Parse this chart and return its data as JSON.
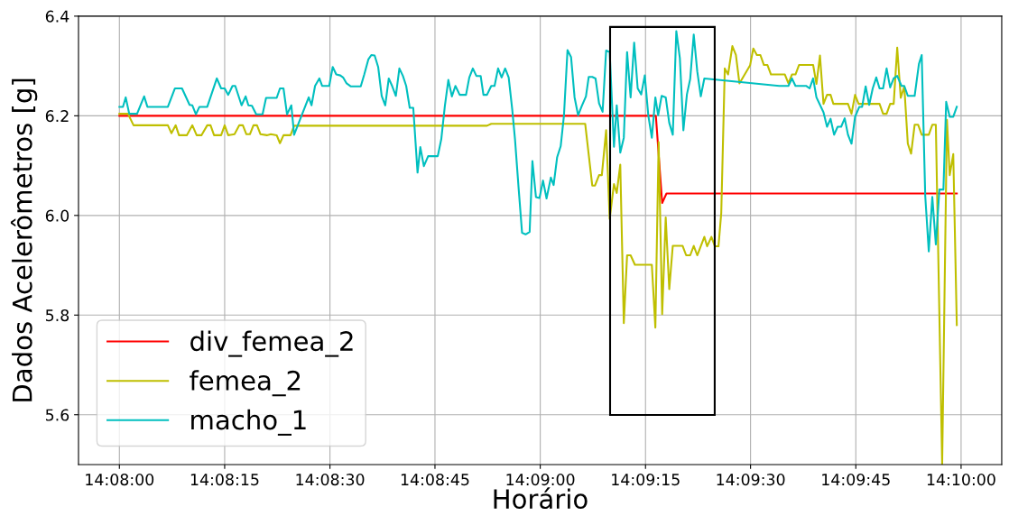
{
  "chart_data": {
    "type": "line",
    "xlabel": "Horário",
    "ylabel": "Dados Acelerômetros [g]",
    "xlim": [
      14.13171,
      14.16828
    ],
    "ylim": [
      5.5,
      6.4
    ],
    "xticks": [
      {
        "value": 14.13333,
        "label": "14:08:00"
      },
      {
        "value": 14.1375,
        "label": "14:08:15"
      },
      {
        "value": 14.14167,
        "label": "14:08:30"
      },
      {
        "value": 14.14583,
        "label": "14:08:45"
      },
      {
        "value": 14.15,
        "label": "14:09:00"
      },
      {
        "value": 14.15417,
        "label": "14:09:15"
      },
      {
        "value": 14.15833,
        "label": "14:09:30"
      },
      {
        "value": 14.1625,
        "label": "14:09:45"
      },
      {
        "value": 14.16667,
        "label": "14:10:00"
      }
    ],
    "yticks": [
      5.6,
      5.8,
      {
        "value": 6.0,
        "label": "6.0"
      },
      6.2,
      6.4
    ],
    "grid": true,
    "legend": "bottom left",
    "line_style": "solid",
    "marker": "none",
    "series": [
      {
        "name": "div_femea_2",
        "color": "#ff0000",
        "x": [
          14.13333,
          14.15458,
          14.15483,
          14.155,
          14.1665
        ],
        "values": [
          6.2,
          6.2,
          6.025,
          6.044,
          6.044
        ]
      },
      {
        "name": "femea_2",
        "color": "#bfbf00",
        "x": [
          14.13333,
          14.13367,
          14.13389,
          14.13525,
          14.13539,
          14.13556,
          14.13569,
          14.136,
          14.13622,
          14.13639,
          14.13658,
          14.13681,
          14.13694,
          14.13708,
          14.13736,
          14.1375,
          14.13764,
          14.13789,
          14.13808,
          14.13822,
          14.13836,
          14.1385,
          14.13864,
          14.13878,
          14.13892,
          14.13917,
          14.13933,
          14.13956,
          14.13969,
          14.13983,
          14.14011,
          14.14025,
          14.14789,
          14.14806,
          14.15178,
          14.15206,
          14.15217,
          14.15233,
          14.15244,
          14.15261,
          14.15275,
          14.15292,
          14.15303,
          14.15317,
          14.15331,
          14.15344,
          14.15358,
          14.15375,
          14.15442,
          14.15456,
          14.15469,
          14.15483,
          14.15497,
          14.15511,
          14.15525,
          14.15564,
          14.15578,
          14.15594,
          14.15608,
          14.15622,
          14.1565,
          14.15661,
          14.15678,
          14.15692,
          14.15706,
          14.15717,
          14.15731,
          14.15744,
          14.15761,
          14.15775,
          14.15789,
          14.15831,
          14.15844,
          14.15858,
          14.15872,
          14.15886,
          14.159,
          14.15914,
          14.15969,
          14.15983,
          14.15997,
          14.16011,
          14.16025,
          14.16081,
          14.16094,
          14.16108,
          14.16122,
          14.16136,
          14.1615,
          14.16161,
          14.16219,
          14.16233,
          14.16247,
          14.16261,
          14.16344,
          14.16358,
          14.16372,
          14.16386,
          14.164,
          14.16414,
          14.16428,
          14.16442,
          14.16456,
          14.16469,
          14.16483,
          14.16497,
          14.16511,
          14.16539,
          14.16553,
          14.16567,
          14.16592,
          14.16611,
          14.16622,
          14.16636,
          14.1665
        ],
        "values": [
          6.204,
          6.204,
          6.181,
          6.181,
          6.165,
          6.181,
          6.161,
          6.161,
          6.181,
          6.161,
          6.161,
          6.181,
          6.181,
          6.161,
          6.161,
          6.181,
          6.161,
          6.163,
          6.181,
          6.181,
          6.163,
          6.163,
          6.181,
          6.181,
          6.163,
          6.161,
          6.163,
          6.161,
          6.145,
          6.161,
          6.161,
          6.18,
          6.18,
          6.184,
          6.184,
          6.06,
          6.06,
          6.081,
          6.081,
          6.171,
          5.993,
          6.063,
          6.045,
          6.102,
          5.784,
          5.92,
          5.92,
          5.901,
          5.901,
          5.775,
          6.147,
          5.802,
          5.996,
          5.852,
          5.939,
          5.939,
          5.92,
          5.92,
          5.939,
          5.92,
          5.957,
          5.938,
          5.957,
          5.938,
          5.938,
          6.005,
          6.295,
          6.283,
          6.34,
          6.322,
          6.265,
          6.301,
          6.335,
          6.322,
          6.322,
          6.302,
          6.302,
          6.283,
          6.283,
          6.265,
          6.283,
          6.283,
          6.302,
          6.302,
          6.264,
          6.321,
          6.224,
          6.242,
          6.242,
          6.224,
          6.224,
          6.204,
          6.242,
          6.224,
          6.224,
          6.204,
          6.204,
          6.224,
          6.224,
          6.337,
          6.236,
          6.259,
          6.144,
          6.124,
          6.182,
          6.182,
          6.162,
          6.162,
          6.182,
          6.182,
          5.5,
          6.192,
          6.081,
          6.123,
          5.78
        ]
      },
      {
        "name": "macho_1",
        "color": "#00bfbf",
        "x": [
          14.13333,
          14.13347,
          14.13358,
          14.13372,
          14.13403,
          14.13431,
          14.13444,
          14.13525,
          14.13553,
          14.13581,
          14.13611,
          14.13622,
          14.13636,
          14.1365,
          14.13681,
          14.13719,
          14.13736,
          14.1375,
          14.13764,
          14.13781,
          14.13792,
          14.13817,
          14.13833,
          14.13844,
          14.13858,
          14.13875,
          14.139,
          14.13914,
          14.13956,
          14.13969,
          14.13983,
          14.13997,
          14.14014,
          14.14025,
          14.14083,
          14.14094,
          14.14108,
          14.14125,
          14.14136,
          14.14164,
          14.14178,
          14.14192,
          14.14208,
          14.14219,
          14.14233,
          14.1425,
          14.14289,
          14.14303,
          14.14319,
          14.14331,
          14.14344,
          14.14358,
          14.14372,
          14.14386,
          14.144,
          14.14414,
          14.14428,
          14.14442,
          14.14456,
          14.14469,
          14.14483,
          14.14497,
          14.14514,
          14.14525,
          14.14539,
          14.14556,
          14.14594,
          14.14608,
          14.14622,
          14.14636,
          14.1465,
          14.14664,
          14.14681,
          14.14706,
          14.14719,
          14.14733,
          14.14747,
          14.14764,
          14.14775,
          14.14789,
          14.14806,
          14.14819,
          14.14833,
          14.14847,
          14.14861,
          14.14875,
          14.14889,
          14.149,
          14.14914,
          14.14928,
          14.14942,
          14.14958,
          14.14969,
          14.14983,
          14.14997,
          14.15011,
          14.15025,
          14.15042,
          14.15053,
          14.15067,
          14.15081,
          14.15094,
          14.15108,
          14.15122,
          14.15136,
          14.1515,
          14.15164,
          14.15181,
          14.15192,
          14.15206,
          14.15219,
          14.15233,
          14.15247,
          14.15261,
          14.15275,
          14.15292,
          14.15303,
          14.15317,
          14.15331,
          14.15344,
          14.15358,
          14.15372,
          14.15386,
          14.154,
          14.15414,
          14.15428,
          14.15442,
          14.15456,
          14.15467,
          14.15481,
          14.15497,
          14.15511,
          14.15525,
          14.15539,
          14.15553,
          14.15567,
          14.15581,
          14.15594,
          14.15608,
          14.15622,
          14.15636,
          14.1565,
          14.15947,
          14.15983,
          14.15997,
          14.16011,
          14.16053,
          14.16067,
          14.16081,
          14.16094,
          14.16122,
          14.16136,
          14.1615,
          14.16164,
          14.16178,
          14.16192,
          14.16206,
          14.16219,
          14.16233,
          14.16247,
          14.16264,
          14.16275,
          14.16289,
          14.16303,
          14.16317,
          14.16331,
          14.16344,
          14.16358,
          14.16372,
          14.16386,
          14.164,
          14.16414,
          14.16431,
          14.16442,
          14.16456,
          14.16483,
          14.165,
          14.16511,
          14.16525,
          14.16539,
          14.16553,
          14.16567,
          14.16581,
          14.16597,
          14.16608,
          14.16622,
          14.16636,
          14.1665
        ],
        "values": [
          6.218,
          6.218,
          6.237,
          6.204,
          6.204,
          6.239,
          6.218,
          6.218,
          6.255,
          6.255,
          6.222,
          6.221,
          6.203,
          6.218,
          6.218,
          6.275,
          6.255,
          6.255,
          6.242,
          6.26,
          6.26,
          6.221,
          6.239,
          6.221,
          6.22,
          6.203,
          6.203,
          6.236,
          6.236,
          6.255,
          6.255,
          6.203,
          6.221,
          6.162,
          6.237,
          6.221,
          6.26,
          6.275,
          6.26,
          6.26,
          6.298,
          6.283,
          6.281,
          6.277,
          6.265,
          6.259,
          6.259,
          6.283,
          6.313,
          6.322,
          6.321,
          6.298,
          6.24,
          6.221,
          6.275,
          6.259,
          6.24,
          6.295,
          6.28,
          6.26,
          6.216,
          6.216,
          6.086,
          6.137,
          6.099,
          6.119,
          6.119,
          6.153,
          6.219,
          6.272,
          6.239,
          6.26,
          6.242,
          6.242,
          6.277,
          6.295,
          6.28,
          6.28,
          6.242,
          6.242,
          6.26,
          6.26,
          6.295,
          6.277,
          6.295,
          6.277,
          6.213,
          6.153,
          6.057,
          5.965,
          5.962,
          5.967,
          6.109,
          6.037,
          6.035,
          6.07,
          6.034,
          6.076,
          6.061,
          6.117,
          6.139,
          6.201,
          6.332,
          6.318,
          6.237,
          6.201,
          6.219,
          6.239,
          6.278,
          6.278,
          6.275,
          6.225,
          6.208,
          6.331,
          6.328,
          6.138,
          6.221,
          6.126,
          6.156,
          6.328,
          6.237,
          6.347,
          6.255,
          6.243,
          6.281,
          6.201,
          6.156,
          6.237,
          6.201,
          6.24,
          6.237,
          6.186,
          6.162,
          6.37,
          6.316,
          6.171,
          6.243,
          6.274,
          6.363,
          6.289,
          6.239,
          6.275,
          6.26,
          6.26,
          6.275,
          6.26,
          6.26,
          6.255,
          6.275,
          6.237,
          6.207,
          6.178,
          6.194,
          6.162,
          6.178,
          6.178,
          6.195,
          6.162,
          6.144,
          6.198,
          6.218,
          6.218,
          6.259,
          6.222,
          6.255,
          6.277,
          6.255,
          6.255,
          6.295,
          6.257,
          6.275,
          6.28,
          6.26,
          6.26,
          6.24,
          6.24,
          6.304,
          6.322,
          6.039,
          5.928,
          6.037,
          5.942,
          6.052,
          6.052,
          6.228,
          6.198,
          6.198,
          6.218
        ]
      }
    ]
  }
}
